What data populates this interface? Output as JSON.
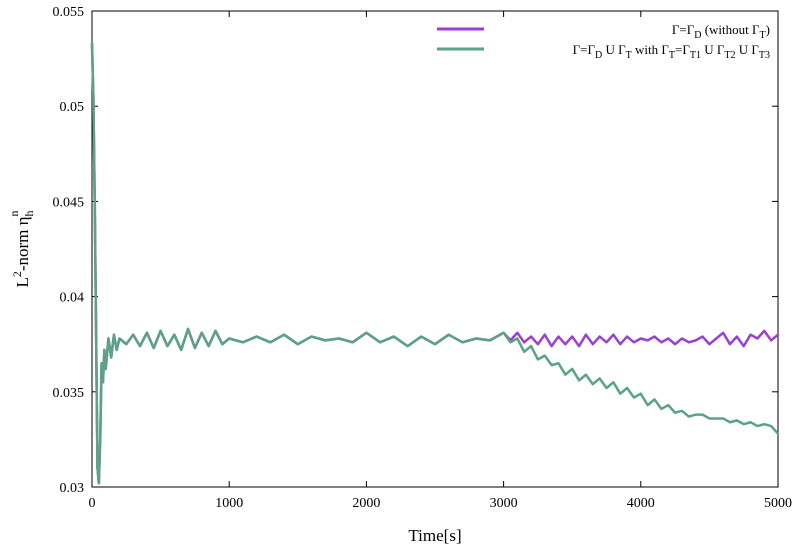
{
  "chart_data": {
    "type": "line",
    "xlabel": "Time[s]",
    "ylabel": {
      "base": "L",
      "sup": "2",
      "rest": "-norm η",
      "sub": "h",
      "sup2": "n"
    },
    "xlim": [
      0,
      5000
    ],
    "ylim": [
      0.03,
      0.055
    ],
    "xticks": [
      0,
      1000,
      2000,
      3000,
      4000,
      5000
    ],
    "xtick_labels": [
      "0",
      "1000",
      "2000",
      "3000",
      "4000",
      "5000"
    ],
    "yticks": [
      0.03,
      0.035,
      0.04,
      0.045,
      0.05,
      0.055
    ],
    "ytick_labels": [
      "0.03",
      "0.035",
      "0.04",
      "0.045",
      "0.05",
      "0.055"
    ],
    "grid": false,
    "legend_position": "top-right",
    "series": [
      {
        "name": "Γ=ΓD (without ΓT)",
        "legend_parts": [
          {
            "t": "Γ=Γ"
          },
          {
            "t": "D",
            "sub": true
          },
          {
            "t": " (without Γ"
          },
          {
            "t": "T",
            "sub": true
          },
          {
            "t": ")"
          }
        ],
        "color": "#9b3fd4",
        "x": [
          0,
          10,
          20,
          30,
          40,
          50,
          60,
          70,
          80,
          90,
          100,
          120,
          140,
          160,
          180,
          200,
          250,
          300,
          350,
          400,
          450,
          500,
          550,
          600,
          650,
          700,
          750,
          800,
          850,
          900,
          950,
          1000,
          1100,
          1200,
          1300,
          1400,
          1500,
          1600,
          1700,
          1800,
          1900,
          2000,
          2100,
          2200,
          2300,
          2400,
          2500,
          2600,
          2700,
          2800,
          2900,
          3000,
          3050,
          3100,
          3150,
          3200,
          3250,
          3300,
          3350,
          3400,
          3450,
          3500,
          3550,
          3600,
          3650,
          3700,
          3750,
          3800,
          3850,
          3900,
          3950,
          4000,
          4050,
          4100,
          4150,
          4200,
          4250,
          4300,
          4350,
          4400,
          4450,
          4500,
          4550,
          4600,
          4650,
          4700,
          4750,
          4800,
          4850,
          4900,
          4950,
          5000
        ],
        "y": [
          0.0533,
          0.0505,
          0.045,
          0.038,
          0.031,
          0.0302,
          0.0325,
          0.0365,
          0.0355,
          0.0372,
          0.0362,
          0.0378,
          0.0368,
          0.038,
          0.0372,
          0.0378,
          0.0375,
          0.038,
          0.0374,
          0.0381,
          0.0373,
          0.0382,
          0.0374,
          0.038,
          0.0372,
          0.0383,
          0.0373,
          0.0381,
          0.0374,
          0.0382,
          0.0375,
          0.0378,
          0.0376,
          0.0379,
          0.0376,
          0.038,
          0.0375,
          0.0379,
          0.0377,
          0.0378,
          0.0376,
          0.0381,
          0.0376,
          0.0379,
          0.0374,
          0.0379,
          0.0375,
          0.038,
          0.0376,
          0.0378,
          0.0377,
          0.0381,
          0.0377,
          0.0381,
          0.0376,
          0.0379,
          0.0375,
          0.038,
          0.0374,
          0.0379,
          0.0375,
          0.0379,
          0.0374,
          0.038,
          0.0375,
          0.0379,
          0.0376,
          0.038,
          0.0375,
          0.0379,
          0.0376,
          0.0378,
          0.0377,
          0.0379,
          0.0376,
          0.0378,
          0.0375,
          0.0378,
          0.0376,
          0.0377,
          0.0379,
          0.0375,
          0.0378,
          0.0381,
          0.0375,
          0.0379,
          0.0374,
          0.038,
          0.0378,
          0.0382,
          0.0377,
          0.038
        ]
      },
      {
        "name": "Γ=ΓD U ΓT with ΓT=ΓT1 U ΓT2 U ΓT3",
        "legend_parts": [
          {
            "t": "Γ=Γ"
          },
          {
            "t": "D",
            "sub": true
          },
          {
            "t": " U Γ"
          },
          {
            "t": "T",
            "sub": true
          },
          {
            "t": " with Γ"
          },
          {
            "t": "T",
            "sub": true
          },
          {
            "t": "=Γ"
          },
          {
            "t": "T1",
            "sub": true
          },
          {
            "t": " U Γ"
          },
          {
            "t": "T2",
            "sub": true
          },
          {
            "t": " U Γ"
          },
          {
            "t": "T3",
            "sub": true
          }
        ],
        "color": "#5aa383",
        "x": [
          0,
          10,
          20,
          30,
          40,
          50,
          60,
          70,
          80,
          90,
          100,
          120,
          140,
          160,
          180,
          200,
          250,
          300,
          350,
          400,
          450,
          500,
          550,
          600,
          650,
          700,
          750,
          800,
          850,
          900,
          950,
          1000,
          1100,
          1200,
          1300,
          1400,
          1500,
          1600,
          1700,
          1800,
          1900,
          2000,
          2100,
          2200,
          2300,
          2400,
          2500,
          2600,
          2700,
          2800,
          2900,
          3000,
          3050,
          3100,
          3150,
          3200,
          3250,
          3300,
          3350,
          3400,
          3450,
          3500,
          3550,
          3600,
          3650,
          3700,
          3750,
          3800,
          3850,
          3900,
          3950,
          4000,
          4050,
          4100,
          4150,
          4200,
          4250,
          4300,
          4350,
          4400,
          4450,
          4500,
          4550,
          4600,
          4650,
          4700,
          4750,
          4800,
          4850,
          4900,
          4950,
          5000
        ],
        "y": [
          0.0533,
          0.0505,
          0.045,
          0.038,
          0.031,
          0.0302,
          0.0325,
          0.0365,
          0.0355,
          0.0372,
          0.0362,
          0.0378,
          0.0368,
          0.038,
          0.0372,
          0.0378,
          0.0375,
          0.038,
          0.0374,
          0.0381,
          0.0373,
          0.0382,
          0.0374,
          0.038,
          0.0372,
          0.0383,
          0.0373,
          0.0381,
          0.0374,
          0.0382,
          0.0375,
          0.0378,
          0.0376,
          0.0379,
          0.0376,
          0.038,
          0.0375,
          0.0379,
          0.0377,
          0.0378,
          0.0376,
          0.0381,
          0.0376,
          0.0379,
          0.0374,
          0.0379,
          0.0375,
          0.038,
          0.0376,
          0.0378,
          0.0377,
          0.0381,
          0.0376,
          0.0378,
          0.0371,
          0.0374,
          0.0367,
          0.0369,
          0.0364,
          0.0365,
          0.0359,
          0.0362,
          0.0356,
          0.0359,
          0.0354,
          0.0357,
          0.0352,
          0.0355,
          0.0349,
          0.0352,
          0.0347,
          0.0349,
          0.0343,
          0.0346,
          0.0341,
          0.0343,
          0.0339,
          0.034,
          0.0337,
          0.0338,
          0.0338,
          0.0336,
          0.0336,
          0.0336,
          0.0334,
          0.0335,
          0.0333,
          0.0334,
          0.0332,
          0.0333,
          0.0332,
          0.0328
        ]
      }
    ]
  }
}
